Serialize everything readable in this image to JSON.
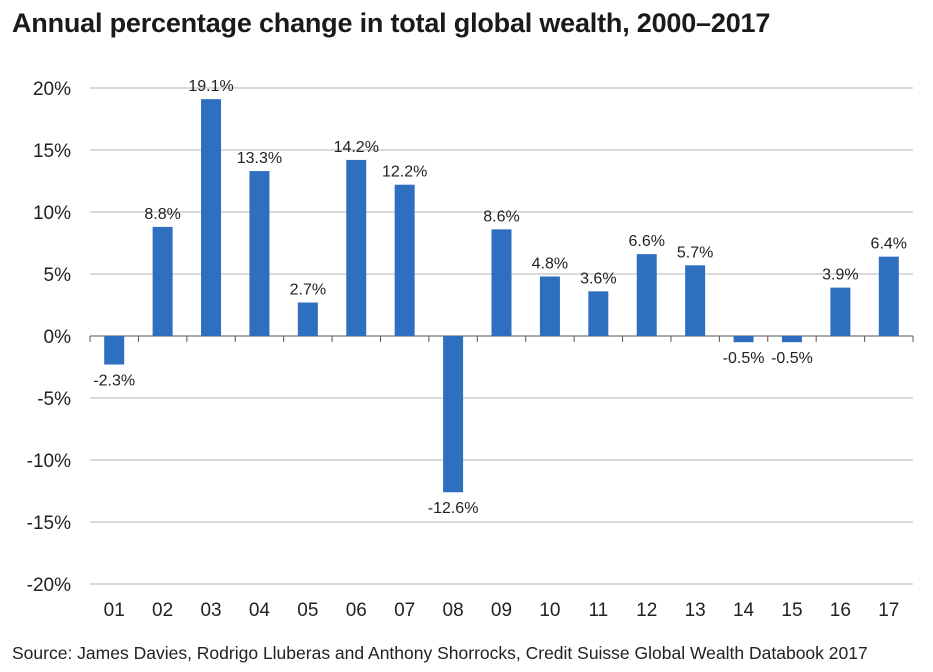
{
  "title": "Annual percentage change in total global wealth, 2000–2017",
  "source": "Source: James Davies, Rodrigo Lluberas and Anthony Shorrocks, Credit Suisse Global Wealth Databook 2017",
  "chart_data": {
    "type": "bar",
    "title": "Annual percentage change in total global wealth, 2000–2017",
    "xlabel": "",
    "ylabel": "",
    "ylim": [
      -20,
      20
    ],
    "yticks": [
      20,
      15,
      10,
      5,
      0,
      -5,
      -10,
      -15,
      -20
    ],
    "ytick_labels": [
      "20%",
      "15%",
      "10%",
      "5%",
      "0%",
      "-5%",
      "-10%",
      "-15%",
      "-20%"
    ],
    "grid": true,
    "bar_color": "#2f6fbf",
    "categories": [
      "01",
      "02",
      "03",
      "04",
      "05",
      "06",
      "07",
      "08",
      "09",
      "10",
      "11",
      "12",
      "13",
      "14",
      "15",
      "16",
      "17"
    ],
    "values": [
      -2.3,
      8.8,
      19.1,
      13.3,
      2.7,
      14.2,
      12.2,
      -12.6,
      8.6,
      4.8,
      3.6,
      6.6,
      5.7,
      -0.5,
      -0.5,
      3.9,
      6.4
    ],
    "data_labels": [
      "-2.3%",
      "8.8%",
      "19.1%",
      "13.3%",
      "2.7%",
      "14.2%",
      "12.2%",
      "-12.6%",
      "8.6%",
      "4.8%",
      "3.6%",
      "6.6%",
      "5.7%",
      "-0.5%",
      "-0.5%",
      "3.9%",
      "6.4%"
    ]
  }
}
